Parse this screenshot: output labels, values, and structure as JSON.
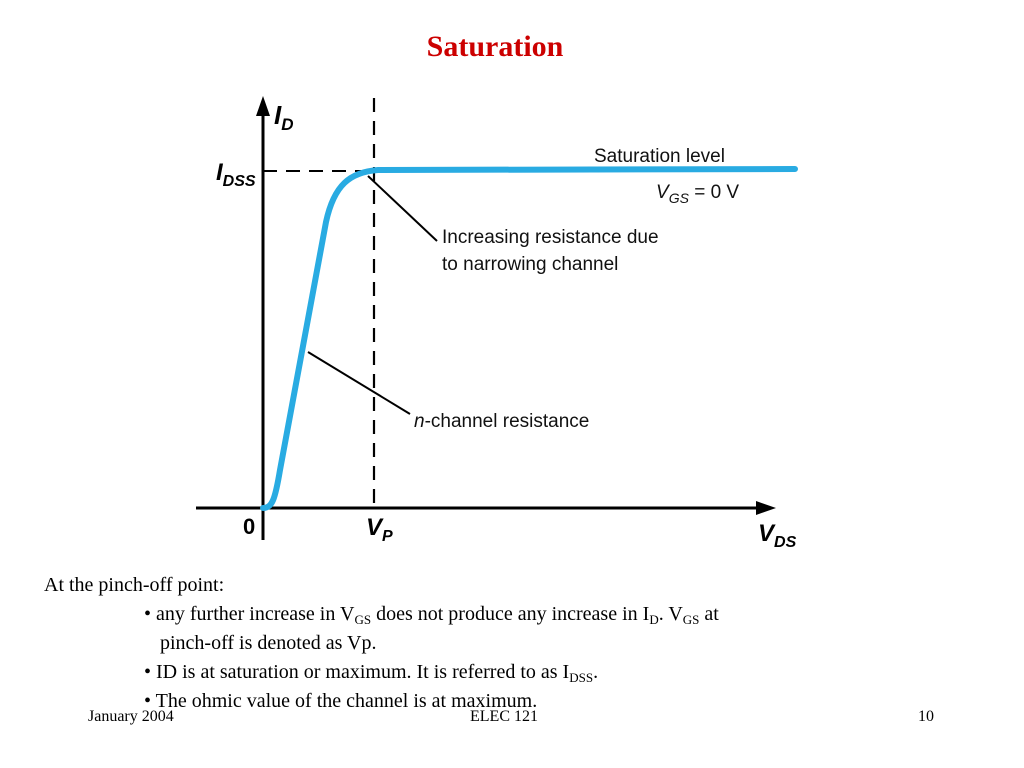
{
  "slide": {
    "title": "Saturation",
    "footer": {
      "left": "January 2004",
      "center": "ELEC 121",
      "right": "10"
    }
  },
  "diagram": {
    "colors": {
      "curve": "#29abe2",
      "lines": "#000000"
    },
    "y_axis": {
      "label": "I",
      "sub": "D"
    },
    "x_axis": {
      "label": "V",
      "sub": "DS"
    },
    "idss_label": {
      "main": "I",
      "sub": "DSS"
    },
    "origin_label": "0",
    "vp_label": {
      "main": "V",
      "sub": "P"
    },
    "annotations": {
      "saturation_level": "Saturation level",
      "vgs_main": "V",
      "vgs_sub": "GS",
      "vgs_value": " = 0 V",
      "increasing_line1": "Increasing resistance due",
      "increasing_line2": "to narrowing channel",
      "n_italic": "n",
      "n_rest": "-channel resistance"
    }
  },
  "text": {
    "intro": "At the pinch-off point:",
    "b1_a": "• any further increase in V",
    "b1_sub1": "GS",
    "b1_b": " does not produce any increase in I",
    "b1_sub2": "D",
    "b1_c": ". V",
    "b1_sub3": "GS",
    "b1_d": " at",
    "b1_line2": "pinch-off is denoted as Vp.",
    "b2_a": "• ID is at saturation or maximum. It is referred to as I",
    "b2_sub": "DSS",
    "b2_b": ".",
    "b3": "• The ohmic value of the channel is at maximum."
  }
}
